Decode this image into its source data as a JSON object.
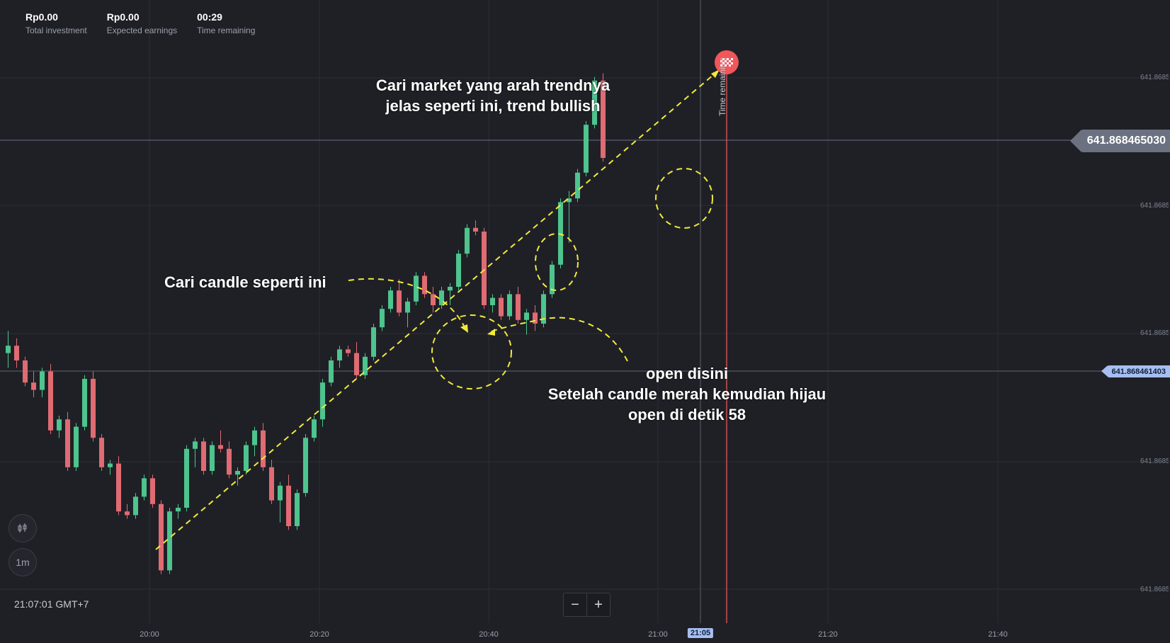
{
  "stats": [
    {
      "value": "Rp0.00",
      "label": "Total investment"
    },
    {
      "value": "Rp0.00",
      "label": "Expected earnings"
    },
    {
      "value": "00:29",
      "label": "Time remaining"
    }
  ],
  "price_current": "641.868465030",
  "price_open": "641.868461403",
  "y_axis_labels": [
    "641.8685",
    "641.8685",
    "641.8685",
    "641.8685",
    "641.8685"
  ],
  "x_axis_labels": [
    "20:00",
    "20:20",
    "20:40",
    "21:00",
    "21:05",
    "21:20",
    "21:40"
  ],
  "clock": "21:07:01 GMT+7",
  "timeframe": "1m",
  "zoom": {
    "minus": "−",
    "plus": "+"
  },
  "vertical_label": "Time remaining",
  "annotations": {
    "trend": "Cari market yang arah trendnya jelas seperti ini, trend bullish",
    "candle": "Cari candle seperti ini",
    "open_1": "open disini",
    "open_2": "Setelah candle merah kemudian hijau",
    "open_3": "open di detik 58"
  },
  "colors": {
    "bull": "#4ec48e",
    "bear": "#e06b73",
    "background": "#1f2026",
    "annotation": "#f2ea3a"
  },
  "chart_data": {
    "type": "candlestick",
    "series": [
      {
        "o": 0.62,
        "h": 0.68,
        "l": 0.58,
        "c": 0.64
      },
      {
        "o": 0.64,
        "h": 0.66,
        "l": 0.58,
        "c": 0.6
      },
      {
        "o": 0.6,
        "h": 0.61,
        "l": 0.53,
        "c": 0.54
      },
      {
        "o": 0.54,
        "h": 0.57,
        "l": 0.5,
        "c": 0.52
      },
      {
        "o": 0.52,
        "h": 0.58,
        "l": 0.5,
        "c": 0.57
      },
      {
        "o": 0.57,
        "h": 0.59,
        "l": 0.4,
        "c": 0.41
      },
      {
        "o": 0.41,
        "h": 0.45,
        "l": 0.39,
        "c": 0.44
      },
      {
        "o": 0.44,
        "h": 0.46,
        "l": 0.3,
        "c": 0.31
      },
      {
        "o": 0.31,
        "h": 0.43,
        "l": 0.3,
        "c": 0.42
      },
      {
        "o": 0.42,
        "h": 0.56,
        "l": 0.41,
        "c": 0.55
      },
      {
        "o": 0.55,
        "h": 0.57,
        "l": 0.38,
        "c": 0.39
      },
      {
        "o": 0.39,
        "h": 0.4,
        "l": 0.3,
        "c": 0.31
      },
      {
        "o": 0.31,
        "h": 0.33,
        "l": 0.29,
        "c": 0.32
      },
      {
        "o": 0.32,
        "h": 0.34,
        "l": 0.18,
        "c": 0.19
      },
      {
        "o": 0.19,
        "h": 0.21,
        "l": 0.17,
        "c": 0.18
      },
      {
        "o": 0.18,
        "h": 0.24,
        "l": 0.17,
        "c": 0.23
      },
      {
        "o": 0.23,
        "h": 0.29,
        "l": 0.22,
        "c": 0.28
      },
      {
        "o": 0.28,
        "h": 0.29,
        "l": 0.2,
        "c": 0.21
      },
      {
        "o": 0.21,
        "h": 0.22,
        "l": 0.02,
        "c": 0.03
      },
      {
        "o": 0.03,
        "h": 0.2,
        "l": 0.02,
        "c": 0.19
      },
      {
        "o": 0.19,
        "h": 0.21,
        "l": 0.17,
        "c": 0.2
      },
      {
        "o": 0.2,
        "h": 0.37,
        "l": 0.19,
        "c": 0.36
      },
      {
        "o": 0.36,
        "h": 0.39,
        "l": 0.31,
        "c": 0.38
      },
      {
        "o": 0.38,
        "h": 0.39,
        "l": 0.29,
        "c": 0.3
      },
      {
        "o": 0.3,
        "h": 0.38,
        "l": 0.29,
        "c": 0.37
      },
      {
        "o": 0.37,
        "h": 0.41,
        "l": 0.35,
        "c": 0.36
      },
      {
        "o": 0.36,
        "h": 0.38,
        "l": 0.28,
        "c": 0.29
      },
      {
        "o": 0.29,
        "h": 0.31,
        "l": 0.26,
        "c": 0.3
      },
      {
        "o": 0.3,
        "h": 0.38,
        "l": 0.29,
        "c": 0.37
      },
      {
        "o": 0.37,
        "h": 0.42,
        "l": 0.34,
        "c": 0.41
      },
      {
        "o": 0.41,
        "h": 0.43,
        "l": 0.3,
        "c": 0.31
      },
      {
        "o": 0.31,
        "h": 0.33,
        "l": 0.21,
        "c": 0.22
      },
      {
        "o": 0.22,
        "h": 0.27,
        "l": 0.16,
        "c": 0.26
      },
      {
        "o": 0.26,
        "h": 0.29,
        "l": 0.14,
        "c": 0.15
      },
      {
        "o": 0.15,
        "h": 0.25,
        "l": 0.14,
        "c": 0.24
      },
      {
        "o": 0.24,
        "h": 0.4,
        "l": 0.23,
        "c": 0.39
      },
      {
        "o": 0.39,
        "h": 0.45,
        "l": 0.38,
        "c": 0.44
      },
      {
        "o": 0.44,
        "h": 0.55,
        "l": 0.42,
        "c": 0.54
      },
      {
        "o": 0.54,
        "h": 0.61,
        "l": 0.53,
        "c": 0.6
      },
      {
        "o": 0.6,
        "h": 0.64,
        "l": 0.58,
        "c": 0.63
      },
      {
        "o": 0.63,
        "h": 0.64,
        "l": 0.61,
        "c": 0.62
      },
      {
        "o": 0.62,
        "h": 0.65,
        "l": 0.55,
        "c": 0.56
      },
      {
        "o": 0.56,
        "h": 0.62,
        "l": 0.55,
        "c": 0.61
      },
      {
        "o": 0.61,
        "h": 0.7,
        "l": 0.6,
        "c": 0.69
      },
      {
        "o": 0.69,
        "h": 0.75,
        "l": 0.68,
        "c": 0.74
      },
      {
        "o": 0.74,
        "h": 0.8,
        "l": 0.73,
        "c": 0.79
      },
      {
        "o": 0.79,
        "h": 0.82,
        "l": 0.72,
        "c": 0.73
      },
      {
        "o": 0.73,
        "h": 0.77,
        "l": 0.69,
        "c": 0.76
      },
      {
        "o": 0.76,
        "h": 0.84,
        "l": 0.75,
        "c": 0.83
      },
      {
        "o": 0.83,
        "h": 0.84,
        "l": 0.77,
        "c": 0.78
      },
      {
        "o": 0.78,
        "h": 0.8,
        "l": 0.73,
        "c": 0.75
      },
      {
        "o": 0.75,
        "h": 0.8,
        "l": 0.74,
        "c": 0.79
      },
      {
        "o": 0.79,
        "h": 0.81,
        "l": 0.75,
        "c": 0.8
      },
      {
        "o": 0.8,
        "h": 0.9,
        "l": 0.79,
        "c": 0.89
      },
      {
        "o": 0.89,
        "h": 0.97,
        "l": 0.88,
        "c": 0.96
      },
      {
        "o": 0.96,
        "h": 0.98,
        "l": 0.94,
        "c": 0.95
      },
      {
        "o": 0.95,
        "h": 0.96,
        "l": 0.74,
        "c": 0.75
      },
      {
        "o": 0.75,
        "h": 0.78,
        "l": 0.73,
        "c": 0.77
      },
      {
        "o": 0.77,
        "h": 0.78,
        "l": 0.71,
        "c": 0.72
      },
      {
        "o": 0.72,
        "h": 0.79,
        "l": 0.71,
        "c": 0.78
      },
      {
        "o": 0.78,
        "h": 0.8,
        "l": 0.7,
        "c": 0.71
      },
      {
        "o": 0.71,
        "h": 0.74,
        "l": 0.67,
        "c": 0.73
      },
      {
        "o": 0.73,
        "h": 0.75,
        "l": 0.68,
        "c": 0.7
      },
      {
        "o": 0.7,
        "h": 0.79,
        "l": 0.69,
        "c": 0.78
      },
      {
        "o": 0.78,
        "h": 0.87,
        "l": 0.77,
        "c": 0.86
      },
      {
        "o": 0.86,
        "h": 1.04,
        "l": 0.85,
        "c": 1.03
      },
      {
        "o": 1.03,
        "h": 1.06,
        "l": 0.92,
        "c": 1.04
      },
      {
        "o": 1.04,
        "h": 1.12,
        "l": 1.03,
        "c": 1.11
      },
      {
        "o": 1.11,
        "h": 1.25,
        "l": 1.1,
        "c": 1.24
      },
      {
        "o": 1.24,
        "h": 1.37,
        "l": 1.23,
        "c": 1.36
      },
      {
        "o": 1.36,
        "h": 1.38,
        "l": 1.14,
        "c": 1.15
      }
    ]
  }
}
